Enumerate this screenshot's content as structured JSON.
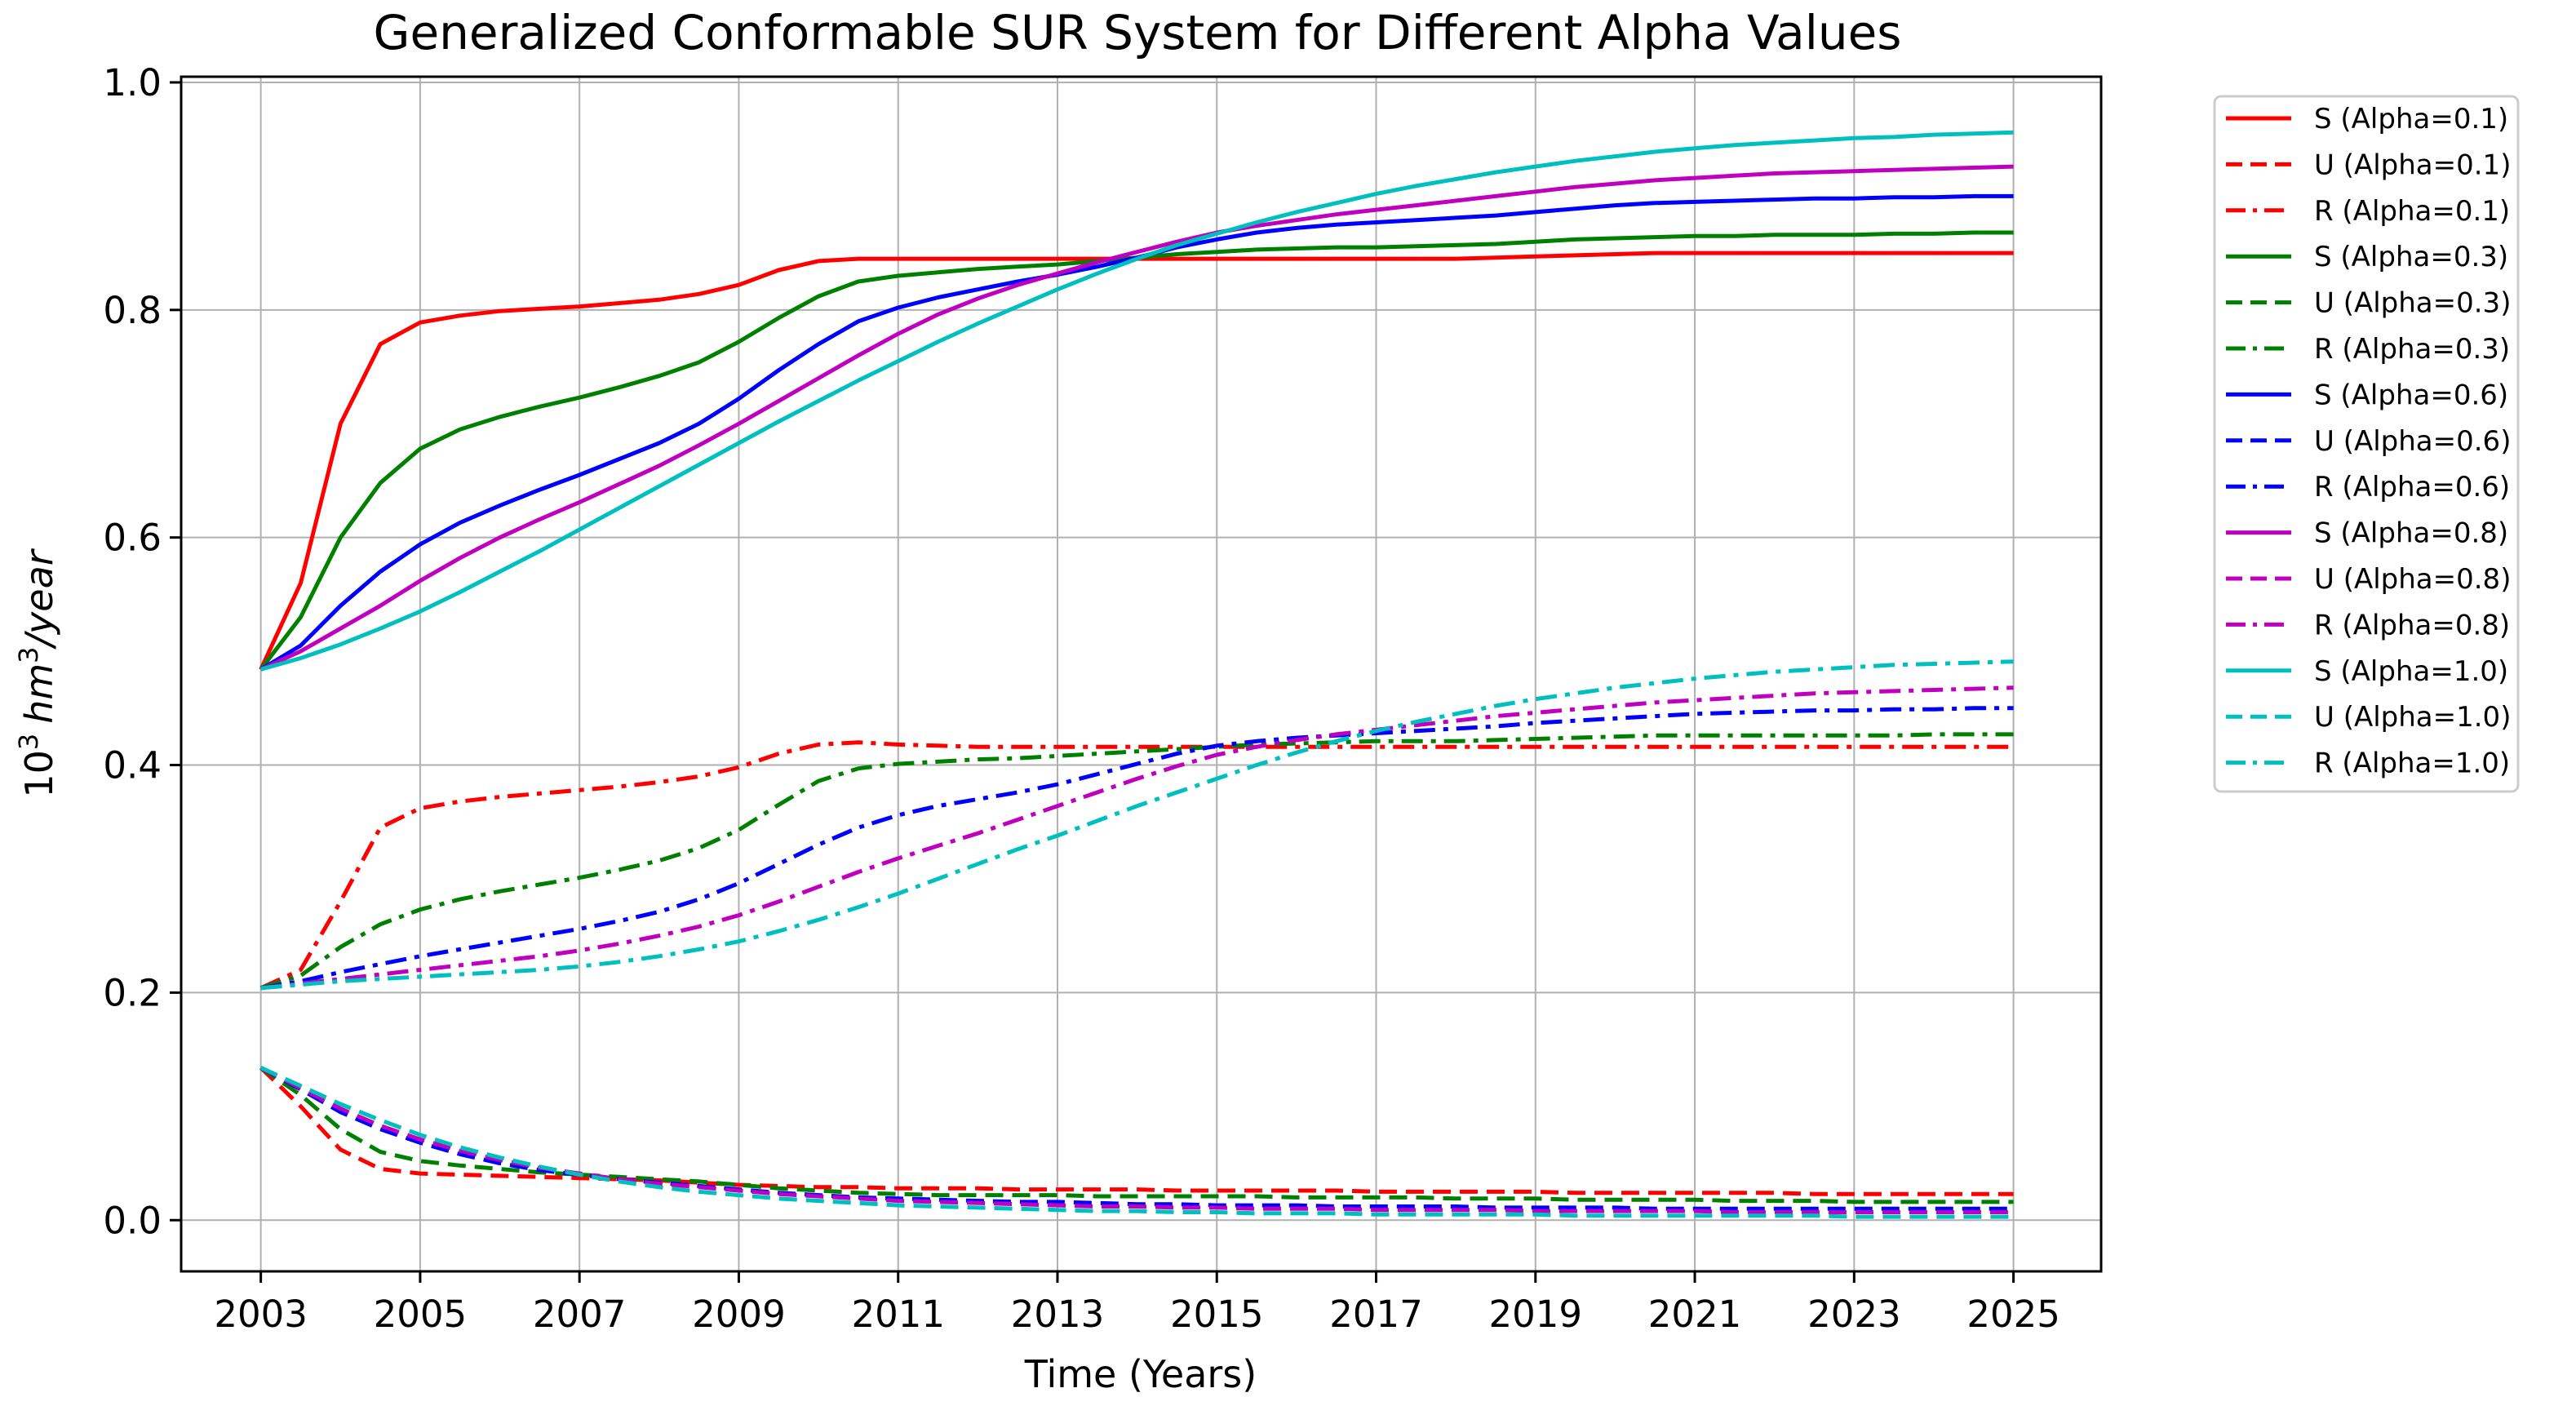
{
  "chart_data": {
    "type": "line",
    "title": "Generalized Conformable SUR System for Different Alpha Values",
    "xlabel": "Time (Years)",
    "ylabel_base": "10",
    "ylabel_exp1": "3",
    "ylabel_unit": "hm",
    "ylabel_exp2": "3",
    "ylabel_tail": "/year",
    "xlim": [
      2002,
      2026.1
    ],
    "ylim": [
      -0.045,
      1.005
    ],
    "xticks": [
      2003,
      2005,
      2007,
      2009,
      2011,
      2013,
      2015,
      2017,
      2019,
      2021,
      2023,
      2025
    ],
    "xtick_labels": [
      "2003",
      "2005",
      "2007",
      "2009",
      "2011",
      "2013",
      "2015",
      "2017",
      "2019",
      "2021",
      "2023",
      "2025"
    ],
    "yticks": [
      0.0,
      0.2,
      0.4,
      0.6,
      0.8,
      1.0
    ],
    "ytick_labels": [
      "0.0",
      "0.2",
      "0.4",
      "0.6",
      "0.8",
      "1.0"
    ],
    "grid": true,
    "legend_position": "outside-right-top",
    "x": [
      2003,
      2003.5,
      2004,
      2004.5,
      2005,
      2005.5,
      2006,
      2006.5,
      2007,
      2007.5,
      2008,
      2008.5,
      2009,
      2009.5,
      2010,
      2010.5,
      2011,
      2011.5,
      2012,
      2012.5,
      2013,
      2013.5,
      2014,
      2014.5,
      2015,
      2015.5,
      2016,
      2016.5,
      2017,
      2017.5,
      2018,
      2018.5,
      2019,
      2019.5,
      2020,
      2020.5,
      2021,
      2021.5,
      2022,
      2022.5,
      2023,
      2023.5,
      2024,
      2024.5,
      2025
    ],
    "series": [
      {
        "name": "S (Alpha=0.1)",
        "color": "#ff0000",
        "style": "solid",
        "values": [
          0.484,
          0.56,
          0.7,
          0.77,
          0.789,
          0.795,
          0.799,
          0.801,
          0.803,
          0.806,
          0.809,
          0.814,
          0.822,
          0.835,
          0.843,
          0.845,
          0.845,
          0.845,
          0.845,
          0.845,
          0.845,
          0.845,
          0.845,
          0.845,
          0.845,
          0.845,
          0.845,
          0.845,
          0.845,
          0.845,
          0.845,
          0.846,
          0.847,
          0.848,
          0.849,
          0.85,
          0.85,
          0.85,
          0.85,
          0.85,
          0.85,
          0.85,
          0.85,
          0.85,
          0.85
        ]
      },
      {
        "name": "U (Alpha=0.1)",
        "color": "#ff0000",
        "style": "dash",
        "values": [
          0.134,
          0.1,
          0.062,
          0.045,
          0.041,
          0.04,
          0.039,
          0.038,
          0.037,
          0.036,
          0.035,
          0.033,
          0.031,
          0.03,
          0.029,
          0.029,
          0.028,
          0.028,
          0.028,
          0.027,
          0.027,
          0.027,
          0.027,
          0.026,
          0.026,
          0.026,
          0.026,
          0.026,
          0.025,
          0.025,
          0.025,
          0.025,
          0.025,
          0.024,
          0.024,
          0.024,
          0.024,
          0.024,
          0.024,
          0.023,
          0.023,
          0.023,
          0.023,
          0.023,
          0.023
        ]
      },
      {
        "name": "R (Alpha=0.1)",
        "color": "#ff0000",
        "style": "dashdot",
        "values": [
          0.204,
          0.22,
          0.28,
          0.345,
          0.362,
          0.368,
          0.372,
          0.375,
          0.378,
          0.381,
          0.385,
          0.39,
          0.398,
          0.41,
          0.418,
          0.42,
          0.418,
          0.417,
          0.416,
          0.416,
          0.416,
          0.416,
          0.416,
          0.416,
          0.416,
          0.416,
          0.416,
          0.416,
          0.416,
          0.416,
          0.416,
          0.416,
          0.416,
          0.416,
          0.416,
          0.416,
          0.416,
          0.416,
          0.416,
          0.416,
          0.416,
          0.416,
          0.416,
          0.416,
          0.416
        ]
      },
      {
        "name": "S (Alpha=0.3)",
        "color": "#008000",
        "style": "solid",
        "values": [
          0.484,
          0.53,
          0.6,
          0.648,
          0.678,
          0.695,
          0.706,
          0.715,
          0.723,
          0.732,
          0.742,
          0.754,
          0.772,
          0.793,
          0.812,
          0.825,
          0.83,
          0.833,
          0.836,
          0.838,
          0.84,
          0.843,
          0.846,
          0.849,
          0.851,
          0.853,
          0.854,
          0.855,
          0.855,
          0.856,
          0.857,
          0.858,
          0.86,
          0.862,
          0.863,
          0.864,
          0.865,
          0.865,
          0.866,
          0.866,
          0.866,
          0.867,
          0.867,
          0.868,
          0.868
        ]
      },
      {
        "name": "U (Alpha=0.3)",
        "color": "#008000",
        "style": "dash",
        "values": [
          0.134,
          0.11,
          0.08,
          0.06,
          0.052,
          0.048,
          0.045,
          0.042,
          0.04,
          0.038,
          0.036,
          0.034,
          0.031,
          0.028,
          0.026,
          0.024,
          0.023,
          0.022,
          0.022,
          0.022,
          0.022,
          0.021,
          0.021,
          0.021,
          0.021,
          0.021,
          0.02,
          0.02,
          0.02,
          0.02,
          0.019,
          0.019,
          0.019,
          0.018,
          0.018,
          0.018,
          0.018,
          0.017,
          0.017,
          0.017,
          0.016,
          0.016,
          0.016,
          0.016,
          0.016
        ]
      },
      {
        "name": "R (Alpha=0.3)",
        "color": "#008000",
        "style": "dashdot",
        "values": [
          0.204,
          0.215,
          0.24,
          0.26,
          0.273,
          0.282,
          0.289,
          0.295,
          0.301,
          0.308,
          0.316,
          0.327,
          0.343,
          0.365,
          0.386,
          0.397,
          0.401,
          0.403,
          0.405,
          0.406,
          0.408,
          0.41,
          0.412,
          0.414,
          0.416,
          0.418,
          0.419,
          0.42,
          0.421,
          0.421,
          0.421,
          0.422,
          0.423,
          0.424,
          0.425,
          0.426,
          0.426,
          0.426,
          0.426,
          0.426,
          0.426,
          0.426,
          0.427,
          0.427,
          0.427
        ]
      },
      {
        "name": "S (Alpha=0.6)",
        "color": "#0000ff",
        "style": "solid",
        "values": [
          0.484,
          0.505,
          0.54,
          0.57,
          0.594,
          0.613,
          0.628,
          0.642,
          0.655,
          0.669,
          0.683,
          0.7,
          0.722,
          0.747,
          0.77,
          0.79,
          0.802,
          0.811,
          0.818,
          0.825,
          0.831,
          0.838,
          0.846,
          0.855,
          0.862,
          0.868,
          0.872,
          0.875,
          0.877,
          0.879,
          0.881,
          0.883,
          0.886,
          0.889,
          0.892,
          0.894,
          0.895,
          0.896,
          0.897,
          0.898,
          0.898,
          0.899,
          0.899,
          0.9,
          0.9
        ]
      },
      {
        "name": "U (Alpha=0.6)",
        "color": "#0000ff",
        "style": "dash",
        "values": [
          0.134,
          0.115,
          0.095,
          0.08,
          0.068,
          0.058,
          0.05,
          0.044,
          0.04,
          0.036,
          0.033,
          0.03,
          0.027,
          0.024,
          0.022,
          0.02,
          0.019,
          0.018,
          0.017,
          0.016,
          0.016,
          0.015,
          0.014,
          0.014,
          0.013,
          0.013,
          0.013,
          0.012,
          0.012,
          0.012,
          0.012,
          0.011,
          0.011,
          0.011,
          0.011,
          0.01,
          0.01,
          0.01,
          0.01,
          0.01,
          0.01,
          0.01,
          0.01,
          0.01,
          0.01
        ]
      },
      {
        "name": "R (Alpha=0.6)",
        "color": "#0000ff",
        "style": "dashdot",
        "values": [
          0.204,
          0.21,
          0.218,
          0.225,
          0.232,
          0.238,
          0.244,
          0.25,
          0.256,
          0.263,
          0.271,
          0.282,
          0.296,
          0.313,
          0.33,
          0.345,
          0.356,
          0.364,
          0.37,
          0.376,
          0.383,
          0.392,
          0.401,
          0.41,
          0.417,
          0.421,
          0.424,
          0.426,
          0.428,
          0.43,
          0.432,
          0.434,
          0.437,
          0.439,
          0.441,
          0.443,
          0.445,
          0.446,
          0.447,
          0.448,
          0.448,
          0.449,
          0.449,
          0.45,
          0.45
        ]
      },
      {
        "name": "S (Alpha=0.8)",
        "color": "#bf00bf",
        "style": "solid",
        "values": [
          0.484,
          0.5,
          0.52,
          0.54,
          0.562,
          0.582,
          0.6,
          0.616,
          0.631,
          0.647,
          0.663,
          0.681,
          0.7,
          0.72,
          0.74,
          0.76,
          0.779,
          0.796,
          0.81,
          0.822,
          0.832,
          0.842,
          0.851,
          0.86,
          0.868,
          0.874,
          0.879,
          0.884,
          0.888,
          0.892,
          0.896,
          0.9,
          0.904,
          0.908,
          0.911,
          0.914,
          0.916,
          0.918,
          0.92,
          0.921,
          0.922,
          0.923,
          0.924,
          0.925,
          0.926
        ]
      },
      {
        "name": "U (Alpha=0.8)",
        "color": "#bf00bf",
        "style": "dash",
        "values": [
          0.134,
          0.116,
          0.098,
          0.083,
          0.071,
          0.061,
          0.053,
          0.046,
          0.041,
          0.036,
          0.032,
          0.029,
          0.026,
          0.023,
          0.021,
          0.019,
          0.017,
          0.016,
          0.015,
          0.014,
          0.013,
          0.012,
          0.012,
          0.011,
          0.011,
          0.01,
          0.01,
          0.01,
          0.009,
          0.009,
          0.009,
          0.009,
          0.008,
          0.008,
          0.008,
          0.008,
          0.008,
          0.007,
          0.007,
          0.007,
          0.007,
          0.007,
          0.007,
          0.007,
          0.007
        ]
      },
      {
        "name": "R (Alpha=0.8)",
        "color": "#bf00bf",
        "style": "dashdot",
        "values": [
          0.204,
          0.208,
          0.212,
          0.216,
          0.22,
          0.224,
          0.228,
          0.232,
          0.237,
          0.243,
          0.25,
          0.258,
          0.268,
          0.28,
          0.293,
          0.306,
          0.318,
          0.329,
          0.34,
          0.352,
          0.364,
          0.376,
          0.388,
          0.399,
          0.409,
          0.416,
          0.422,
          0.427,
          0.431,
          0.435,
          0.439,
          0.443,
          0.446,
          0.449,
          0.452,
          0.455,
          0.457,
          0.459,
          0.461,
          0.463,
          0.464,
          0.465,
          0.466,
          0.467,
          0.468
        ]
      },
      {
        "name": "S (Alpha=1.0)",
        "color": "#00bfbf",
        "style": "solid",
        "values": [
          0.484,
          0.494,
          0.506,
          0.52,
          0.535,
          0.552,
          0.57,
          0.588,
          0.607,
          0.626,
          0.645,
          0.664,
          0.683,
          0.702,
          0.72,
          0.738,
          0.755,
          0.772,
          0.788,
          0.803,
          0.818,
          0.832,
          0.845,
          0.857,
          0.867,
          0.877,
          0.886,
          0.894,
          0.902,
          0.909,
          0.915,
          0.921,
          0.926,
          0.931,
          0.935,
          0.939,
          0.942,
          0.945,
          0.947,
          0.949,
          0.951,
          0.952,
          0.954,
          0.955,
          0.956
        ]
      },
      {
        "name": "U (Alpha=1.0)",
        "color": "#00bfbf",
        "style": "dash",
        "values": [
          0.134,
          0.118,
          0.102,
          0.088,
          0.075,
          0.064,
          0.055,
          0.047,
          0.04,
          0.034,
          0.029,
          0.025,
          0.022,
          0.019,
          0.017,
          0.015,
          0.013,
          0.012,
          0.011,
          0.01,
          0.009,
          0.008,
          0.008,
          0.007,
          0.007,
          0.006,
          0.006,
          0.006,
          0.005,
          0.005,
          0.005,
          0.005,
          0.005,
          0.004,
          0.004,
          0.004,
          0.004,
          0.004,
          0.004,
          0.004,
          0.003,
          0.003,
          0.003,
          0.003,
          0.003
        ]
      },
      {
        "name": "R (Alpha=1.0)",
        "color": "#00bfbf",
        "style": "dashdot",
        "values": [
          0.204,
          0.207,
          0.21,
          0.212,
          0.214,
          0.216,
          0.218,
          0.22,
          0.223,
          0.227,
          0.232,
          0.238,
          0.245,
          0.254,
          0.264,
          0.275,
          0.287,
          0.3,
          0.313,
          0.326,
          0.338,
          0.351,
          0.364,
          0.376,
          0.388,
          0.4,
          0.411,
          0.421,
          0.43,
          0.438,
          0.445,
          0.452,
          0.458,
          0.463,
          0.468,
          0.472,
          0.476,
          0.479,
          0.482,
          0.484,
          0.486,
          0.488,
          0.489,
          0.49,
          0.491
        ]
      }
    ]
  }
}
